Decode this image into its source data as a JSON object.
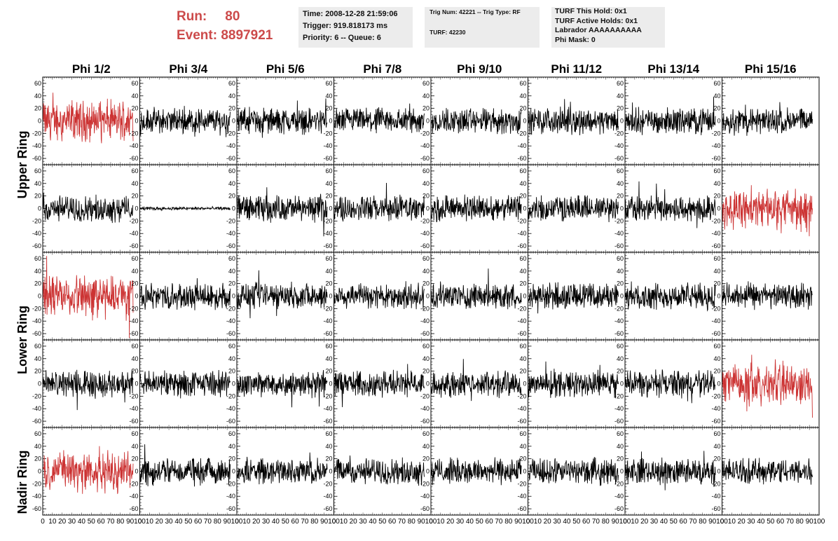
{
  "header": {
    "run_label": "Run:",
    "run_value": "80",
    "event_label": "Event:",
    "event_value": "8897921",
    "accent_color": "#cc4a4a"
  },
  "info_time": {
    "time": "Time: 2008-12-28 21:59:06",
    "trigger": "Trigger: 919.818173 ms",
    "priority": "Priority: 6 -- Queue: 6"
  },
  "info_trig": {
    "trig": "Trig Num: 42221 -- Trig Type: RF",
    "turf": "TURF: 42230"
  },
  "info_turf": {
    "hold": "TURF This Hold: 0x1",
    "active": "TURF Active Holds: 0x1",
    "labrador": "Labrador AAAAAAAAAA",
    "mask": "Phi Mask: 0"
  },
  "grid": {
    "columns": [
      "Phi 1/2",
      "Phi 3/4",
      "Phi 5/6",
      "Phi 7/8",
      "Phi 9/10",
      "Phi 11/12",
      "Phi 13/14",
      "Phi 15/16"
    ],
    "row_labels": [
      "Upper Ring",
      "Lower Ring",
      "Nadir Ring"
    ],
    "y_ticks": [
      "60",
      "40",
      "20",
      "0",
      "-20",
      "-40",
      "-60"
    ],
    "x_ticks": [
      "0",
      "10",
      "20",
      "30",
      "40",
      "50",
      "60",
      "70",
      "80",
      "90",
      "100"
    ],
    "ylim": [
      -70,
      70
    ],
    "xlim": [
      0,
      100
    ],
    "line_color": "#000000",
    "highlight_color": "#cc3333",
    "highlighted_panels": [
      [
        0,
        0
      ],
      [
        1,
        7
      ],
      [
        2,
        0
      ],
      [
        3,
        7
      ],
      [
        4,
        0
      ]
    ],
    "quiet_panels": [
      [
        1,
        1
      ]
    ]
  }
}
